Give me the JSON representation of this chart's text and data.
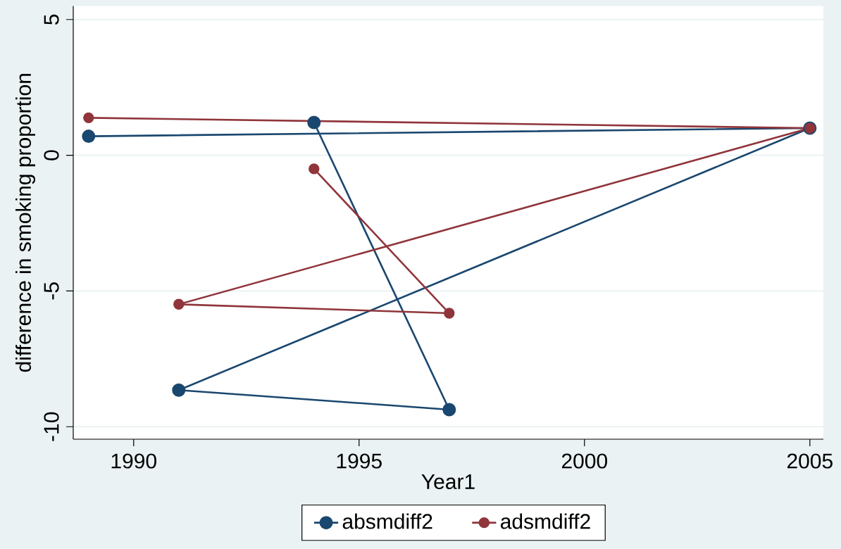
{
  "chart_data": {
    "type": "line",
    "xlabel": "Year1",
    "ylabel": "difference in smoking proportion",
    "xlim": [
      1988.66,
      2005.3
    ],
    "ylim": [
      -10.46,
      5.5
    ],
    "xticks": [
      1990,
      1995,
      2000,
      2005
    ],
    "yticks": [
      -10,
      -5,
      0,
      5
    ],
    "grid": "y",
    "legend": "bottom",
    "marker": "circle",
    "line_style": "solid",
    "series": [
      {
        "name": "absmdiff2",
        "color": "#1a476f",
        "x": [
          1989,
          2005,
          1991,
          1997,
          1994
        ],
        "values": [
          0.7,
          1.0,
          -8.65,
          -9.37,
          1.21
        ]
      },
      {
        "name": "adsmdiff2",
        "color": "#90353b",
        "x": [
          1989,
          2005,
          1991,
          1997,
          1994
        ],
        "values": [
          1.38,
          1.0,
          -5.49,
          -5.82,
          -0.5
        ]
      }
    ]
  }
}
